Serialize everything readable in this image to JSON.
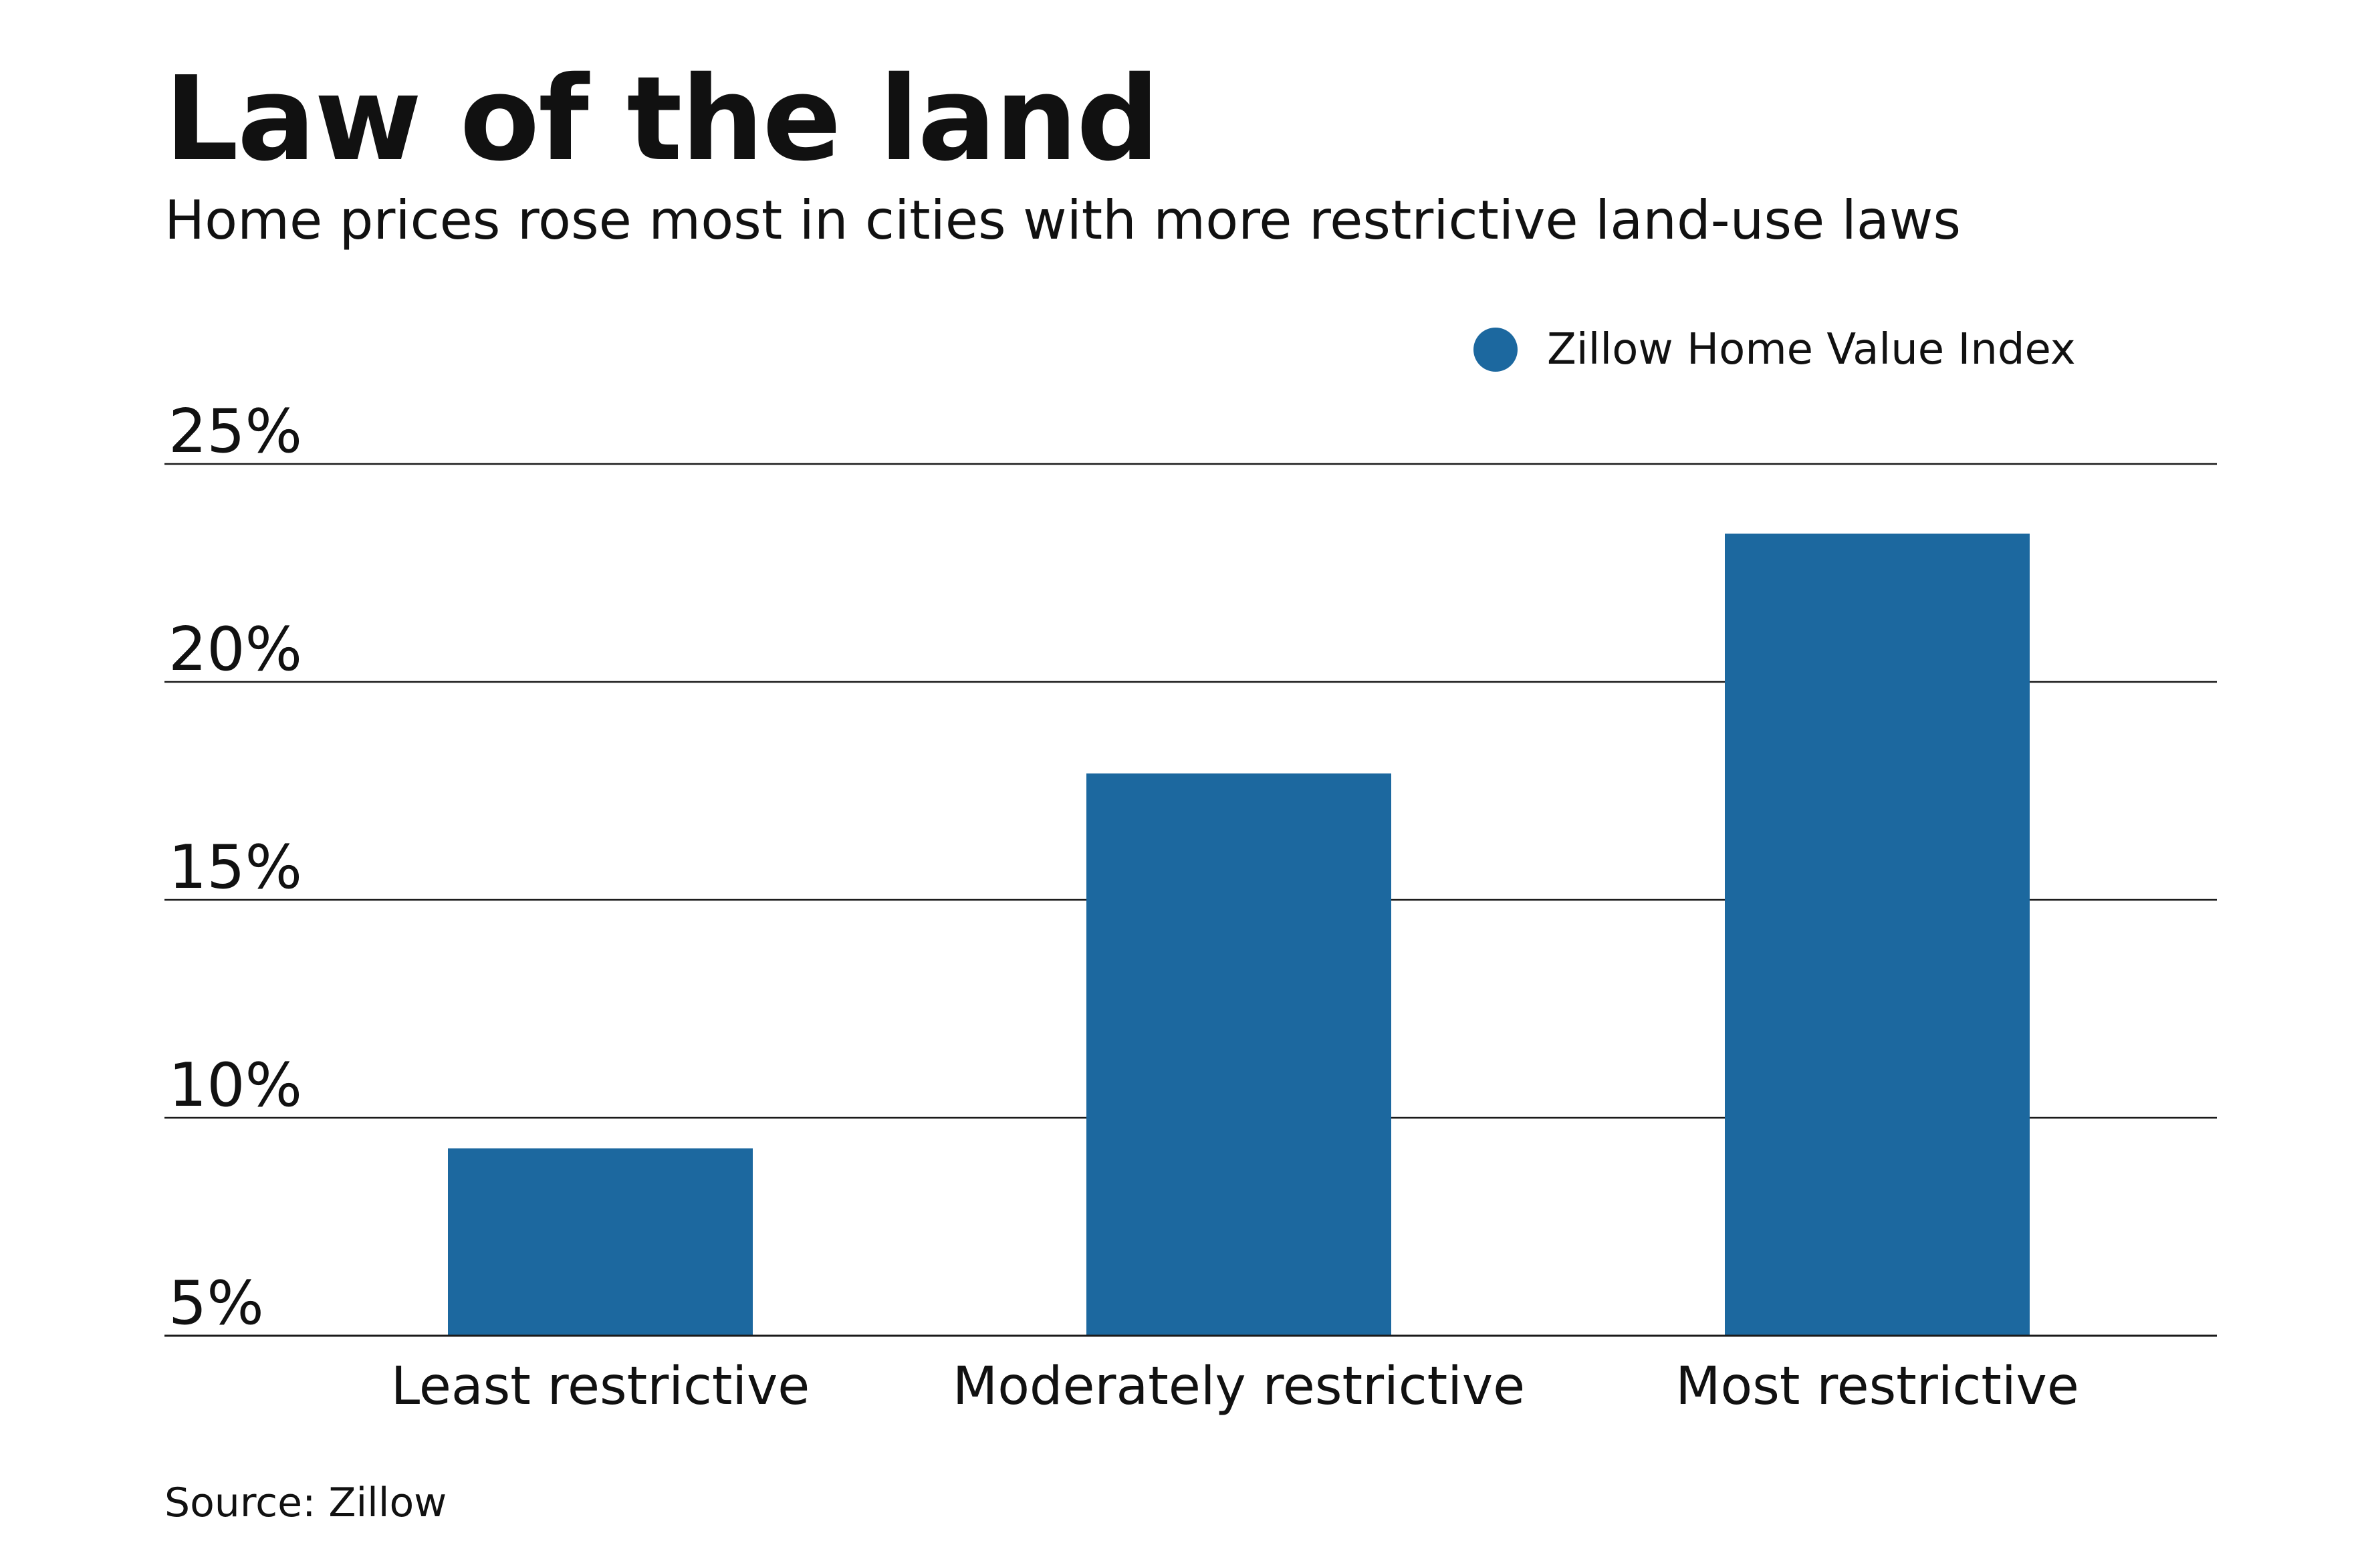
{
  "header": {
    "title": "Law of the land",
    "subtitle": "Home prices rose most in cities with more restrictive land-use laws"
  },
  "legend": {
    "label": "Zillow Home Value Index",
    "color": "#1c689f"
  },
  "footer": {
    "source": "Source: Zillow"
  },
  "chart_data": {
    "type": "bar",
    "categories": [
      "Least restrictive",
      "Moderately restrictive",
      "Most restrictive"
    ],
    "series": [
      {
        "name": "Zillow Home Value Index",
        "values": [
          9.3,
          17.9,
          23.4
        ],
        "color": "#1c689f"
      }
    ],
    "ylim": [
      5,
      25
    ],
    "yticks": [
      5,
      10,
      15,
      20,
      25
    ],
    "ytick_labels": [
      "5%",
      "10%",
      "15%",
      "20%",
      "25%"
    ],
    "grid": true,
    "legend_position": "top-right"
  }
}
